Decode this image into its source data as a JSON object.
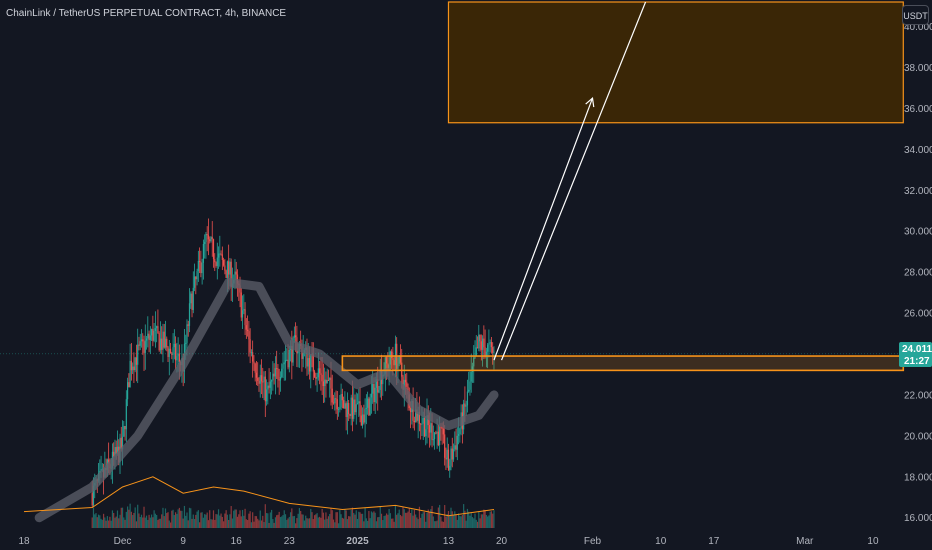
{
  "header": {
    "title": "ChainLink / TetherUS PERPETUAL CONTRACT, 4h, BINANCE"
  },
  "currency_button": {
    "label": "USDT"
  },
  "price_badge": {
    "price": "24.011",
    "countdown": "21:27"
  },
  "colors": {
    "background": "#131722",
    "up": "#26a69a",
    "down": "#ef5350",
    "zone_fill": "#3a2606",
    "zone_border": "#f7931a",
    "ema_band": "#5d606b",
    "volume_ma": "#f7931a",
    "arrow": "#ffffff",
    "badge": "#26a69a"
  },
  "chart_data": {
    "type": "candlestick",
    "title": "ChainLink / TetherUS PERPETUAL CONTRACT, 4h, BINANCE",
    "y_ticks": [
      "16.000",
      "18.000",
      "20.000",
      "22.000",
      "24.000",
      "26.000",
      "28.000",
      "30.000",
      "32.000",
      "34.000",
      "36.000",
      "38.000",
      "40.000"
    ],
    "x_ticks": [
      "18",
      "Dec",
      "9",
      "16",
      "23",
      "2025",
      "13",
      "20",
      "Feb",
      "10",
      "17",
      "Mar",
      "10"
    ],
    "ylim": [
      15.4,
      41.2
    ],
    "last_price": 24.011,
    "price_series": {
      "x": [
        "Nov 27",
        "Dec 1",
        "Dec 2",
        "Dec 3",
        "Dec 5",
        "Dec 9",
        "Dec 10",
        "Dec 12",
        "Dec 13",
        "Dec 15",
        "Dec 16",
        "Dec 18",
        "Dec 20",
        "Dec 22",
        "Dec 24",
        "Dec 27",
        "Dec 30",
        "Jan 2",
        "Jan 4",
        "Jan 6",
        "Jan 8",
        "Jan 10",
        "Jan 12",
        "Jan 13",
        "Jan 15",
        "Jan 17",
        "Jan 19"
      ],
      "close": [
        17.2,
        19.5,
        23.5,
        24.0,
        25.0,
        23.5,
        26.5,
        29.5,
        29.0,
        28.0,
        27.5,
        24.0,
        22.0,
        23.5,
        24.5,
        23.0,
        21.5,
        21.0,
        23.0,
        24.0,
        21.5,
        20.5,
        20.0,
        18.5,
        21.0,
        24.5,
        24.0
      ],
      "high": [
        17.8,
        22.0,
        24.5,
        26.0,
        27.2,
        25.0,
        30.5,
        31.0,
        30.5,
        29.5,
        28.5,
        26.0,
        24.5,
        25.0,
        26.0,
        25.0,
        23.0,
        22.5,
        24.0,
        24.9,
        24.0,
        22.0,
        21.5,
        20.5,
        22.5,
        25.6,
        25.0
      ],
      "low": [
        16.5,
        17.0,
        19.5,
        20.5,
        21.0,
        20.0,
        23.0,
        25.5,
        26.0,
        25.5,
        24.0,
        21.0,
        20.5,
        21.5,
        22.5,
        21.5,
        20.0,
        19.8,
        21.0,
        22.0,
        19.8,
        19.5,
        19.2,
        17.9,
        18.5,
        22.0,
        23.0
      ]
    },
    "ema_band": {
      "x": [
        "Nov 20",
        "Nov 27",
        "Dec 3",
        "Dec 9",
        "Dec 15",
        "Dec 19",
        "Dec 23",
        "Dec 27",
        "Jan 1",
        "Jan 5",
        "Jan 9",
        "Jan 13",
        "Jan 17",
        "Jan 19"
      ],
      "y": [
        16.0,
        17.5,
        20.0,
        23.5,
        27.5,
        27.3,
        24.5,
        24.0,
        22.5,
        23.1,
        21.3,
        20.5,
        21.0,
        22.0
      ]
    },
    "volume_ma": {
      "x": [
        "Nov 18",
        "Nov 27",
        "Dec 1",
        "Dec 5",
        "Dec 9",
        "Dec 13",
        "Dec 17",
        "Dec 23",
        "Dec 30",
        "Jan 6",
        "Jan 13",
        "Jan 19"
      ],
      "y": [
        16.3,
        16.5,
        17.5,
        18.0,
        17.2,
        17.5,
        17.3,
        16.7,
        16.4,
        16.6,
        16.1,
        16.4
      ]
    },
    "zones": [
      {
        "name": "target",
        "y_low": 35.3,
        "y_high": 41.2,
        "x_start": "Jan 13",
        "x_end": "Mar 14"
      },
      {
        "name": "support",
        "y_low": 23.2,
        "y_high": 23.9,
        "x_start": "Dec 30",
        "x_end": "Mar 14"
      }
    ],
    "arrows": [
      {
        "from": [
          "Jan 19",
          23.7
        ],
        "to": [
          "Feb 1",
          36.5
        ]
      },
      {
        "from": [
          "Jan 20",
          23.7
        ],
        "to": [
          "Feb 8",
          41.2
        ]
      }
    ],
    "grid": false
  }
}
